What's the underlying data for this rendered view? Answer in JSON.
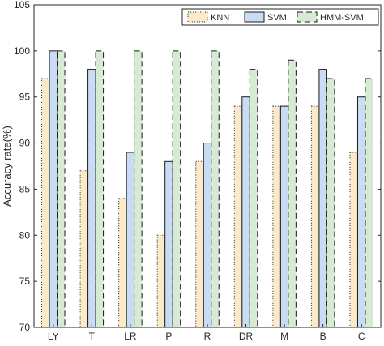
{
  "chart_data": {
    "type": "bar",
    "categories": [
      "LY",
      "T",
      "LR",
      "P",
      "R",
      "DR",
      "M",
      "B",
      "C"
    ],
    "series": [
      {
        "name": "KNN",
        "values": [
          97,
          87,
          84,
          80,
          88,
          94,
          94,
          94,
          89
        ],
        "fill": "#fce9c8",
        "stroke": "#3a3a3a",
        "dash": "1.2,1.8"
      },
      {
        "name": "SVM",
        "values": [
          100,
          98,
          89,
          88,
          90,
          95,
          94,
          98,
          95
        ],
        "fill": "#c9dcf3",
        "stroke": "#1a1a1a",
        "dash": ""
      },
      {
        "name": "HMM-SVM",
        "values": [
          100,
          100,
          100,
          100,
          100,
          98,
          99,
          97,
          97
        ],
        "fill": "#d6ead4",
        "stroke": "#1a1a1a",
        "dash": "7,4"
      }
    ],
    "xlabel": "",
    "ylabel": "Accuracy rate(%)",
    "ylim": [
      70,
      105
    ],
    "yticks": [
      70,
      75,
      80,
      85,
      90,
      95,
      100,
      105
    ],
    "grid": false,
    "legend_position": "top-right"
  }
}
